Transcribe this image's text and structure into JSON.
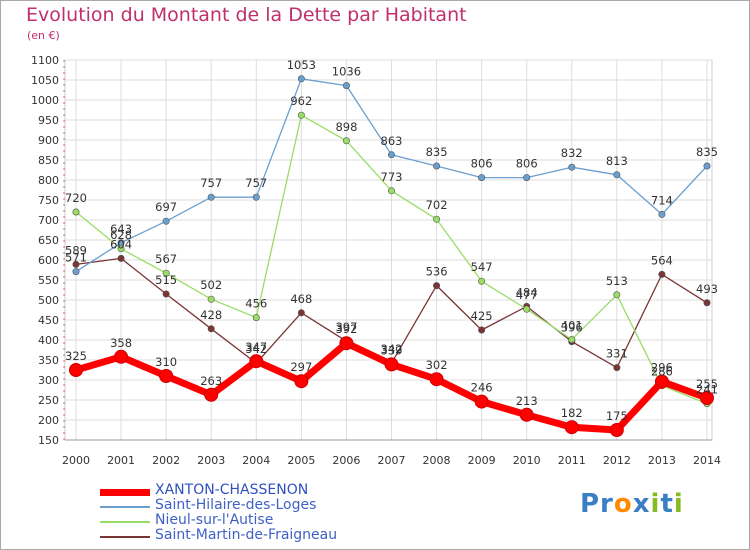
{
  "title": "Evolution du Montant de la Dette par Habitant",
  "subtitle": "(en €)",
  "chart_data": {
    "type": "line",
    "title": "Evolution du Montant de la Dette par Habitant",
    "subtitle": "(en €)",
    "xlabel": "",
    "ylabel": "",
    "categories": [
      "2000",
      "2001",
      "2002",
      "2003",
      "2004",
      "2005",
      "2006",
      "2007",
      "2008",
      "2009",
      "2010",
      "2011",
      "2012",
      "2013",
      "2014"
    ],
    "y_ticks": [
      150,
      200,
      250,
      300,
      350,
      400,
      450,
      500,
      550,
      600,
      650,
      700,
      750,
      800,
      850,
      900,
      950,
      1000,
      1050,
      1100
    ],
    "ylim": [
      150,
      1100
    ],
    "grid": true,
    "legend_position": "bottom-left",
    "series": [
      {
        "name": "XANTON-CHASSENON",
        "color": "#ff0000",
        "values": [
          325,
          358,
          310,
          263,
          347,
          297,
          392,
          339,
          302,
          246,
          213,
          182,
          175,
          296,
          255
        ]
      },
      {
        "name": "Saint-Hilaire-des-Loges",
        "color": "#6a9fd0",
        "values": [
          571,
          643,
          697,
          757,
          757,
          1053,
          1036,
          863,
          835,
          806,
          806,
          832,
          813,
          714,
          835
        ]
      },
      {
        "name": "Nieul-sur-l'Autise",
        "color": "#99dd66",
        "values": [
          720,
          628,
          567,
          502,
          456,
          962,
          898,
          773,
          702,
          547,
          477,
          401,
          513,
          286,
          241
        ]
      },
      {
        "name": "Saint-Martin-de-Fraigneau",
        "color": "#7a3535",
        "values": [
          589,
          604,
          515,
          428,
          342,
          468,
          397,
          342,
          536,
          425,
          484,
          396,
          331,
          564,
          493
        ]
      }
    ]
  },
  "logo": {
    "text_parts": [
      "Pr",
      "o",
      "x",
      "i",
      "t",
      "i"
    ]
  }
}
